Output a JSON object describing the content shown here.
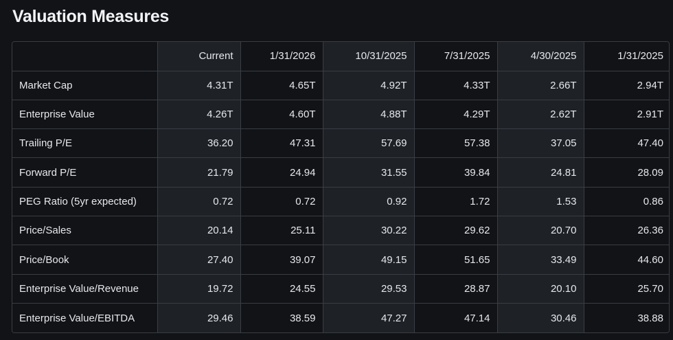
{
  "title": "Valuation Measures",
  "columns": [
    "",
    "Current",
    "1/31/2026",
    "10/31/2025",
    "7/31/2025",
    "4/30/2025",
    "1/31/2025"
  ],
  "rows": [
    {
      "label": "Market Cap",
      "values": [
        "4.31T",
        "4.65T",
        "4.92T",
        "4.33T",
        "2.66T",
        "2.94T"
      ]
    },
    {
      "label": "Enterprise Value",
      "values": [
        "4.26T",
        "4.60T",
        "4.88T",
        "4.29T",
        "2.62T",
        "2.91T"
      ]
    },
    {
      "label": "Trailing P/E",
      "values": [
        "36.20",
        "47.31",
        "57.69",
        "57.38",
        "37.05",
        "47.40"
      ]
    },
    {
      "label": "Forward P/E",
      "values": [
        "21.79",
        "24.94",
        "31.55",
        "39.84",
        "24.81",
        "28.09"
      ]
    },
    {
      "label": "PEG Ratio (5yr expected)",
      "values": [
        "0.72",
        "0.72",
        "0.92",
        "1.72",
        "1.53",
        "0.86"
      ]
    },
    {
      "label": "Price/Sales",
      "values": [
        "20.14",
        "25.11",
        "30.22",
        "29.62",
        "20.70",
        "26.36"
      ]
    },
    {
      "label": "Price/Book",
      "values": [
        "27.40",
        "39.07",
        "49.15",
        "51.65",
        "33.49",
        "44.60"
      ]
    },
    {
      "label": "Enterprise Value/Revenue",
      "values": [
        "19.72",
        "24.55",
        "29.53",
        "28.87",
        "20.10",
        "25.70"
      ]
    },
    {
      "label": "Enterprise Value/EBITDA",
      "values": [
        "29.46",
        "38.59",
        "47.27",
        "47.14",
        "30.46",
        "38.88"
      ]
    }
  ]
}
